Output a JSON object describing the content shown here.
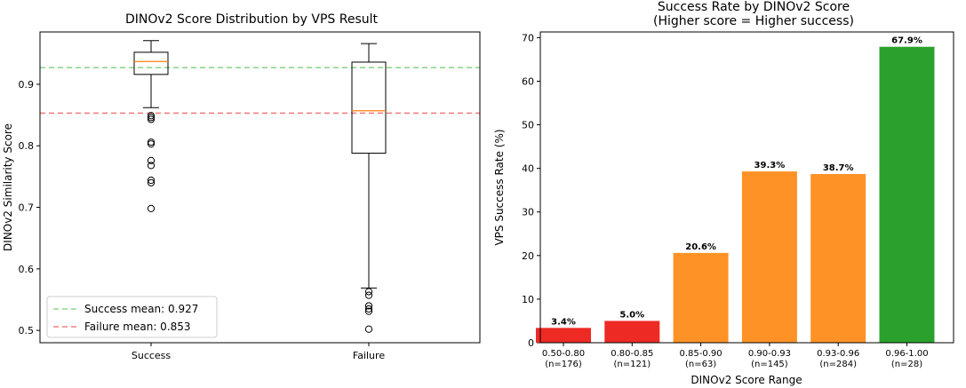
{
  "chart_data": [
    {
      "type": "box",
      "title": "DINOv2 Score Distribution by VPS Result",
      "xlabel": "",
      "ylabel": "DINOv2 Similarity Score",
      "ylim": [
        0.48,
        0.985
      ],
      "yticks": [
        0.5,
        0.6,
        0.7,
        0.8,
        0.9
      ],
      "yticklabels": [
        "0.5",
        "0.6",
        "0.7",
        "0.8",
        "0.9"
      ],
      "categories": [
        "Success",
        "Failure"
      ],
      "boxes": [
        {
          "name": "Success",
          "whisker_low": 0.862,
          "q1": 0.916,
          "median": 0.937,
          "q3": 0.952,
          "whisker_high": 0.971,
          "outliers": [
            0.849,
            0.846,
            0.843,
            0.806,
            0.803,
            0.776,
            0.768,
            0.744,
            0.74,
            0.698
          ]
        },
        {
          "name": "Failure",
          "whisker_low": 0.569,
          "q1": 0.788,
          "median": 0.857,
          "q3": 0.936,
          "whisker_high": 0.966,
          "outliers": [
            0.563,
            0.557,
            0.54,
            0.535,
            0.531,
            0.502
          ]
        }
      ],
      "reference_lines": [
        {
          "label": "Success mean: 0.927",
          "y": 0.927,
          "color": "#90d890",
          "style": "dashed"
        },
        {
          "label": "Failure mean: 0.853",
          "y": 0.853,
          "color": "#f08080",
          "style": "dashed"
        }
      ],
      "legend": "lower-left",
      "grid": false
    },
    {
      "type": "bar",
      "title": "Success Rate by DINOv2 Score",
      "subtitle": "(Higher score = Higher success)",
      "xlabel": "DINOv2 Score Range",
      "ylabel": "VPS Success Rate (%)",
      "ylim": [
        0,
        71.3
      ],
      "yticks": [
        0,
        10,
        20,
        30,
        40,
        50,
        60,
        70
      ],
      "yticklabels": [
        "0",
        "10",
        "20",
        "30",
        "40",
        "50",
        "60",
        "70"
      ],
      "categories": [
        "0.50-0.80",
        "0.80-0.85",
        "0.85-0.90",
        "0.90-0.93",
        "0.93-0.96",
        "0.96-1.00"
      ],
      "counts": [
        "(n=176)",
        "(n=121)",
        "(n=63)",
        "(n=145)",
        "(n=284)",
        "(n=28)"
      ],
      "values": [
        3.4,
        5.0,
        20.6,
        39.3,
        38.7,
        67.9
      ],
      "value_labels": [
        "3.4%",
        "5.0%",
        "20.6%",
        "39.3%",
        "38.7%",
        "67.9%"
      ],
      "colors": [
        "#ee2a24",
        "#ee2a24",
        "#ff9226",
        "#ff9226",
        "#ff9226",
        "#2ca02c"
      ],
      "grid": false
    }
  ]
}
